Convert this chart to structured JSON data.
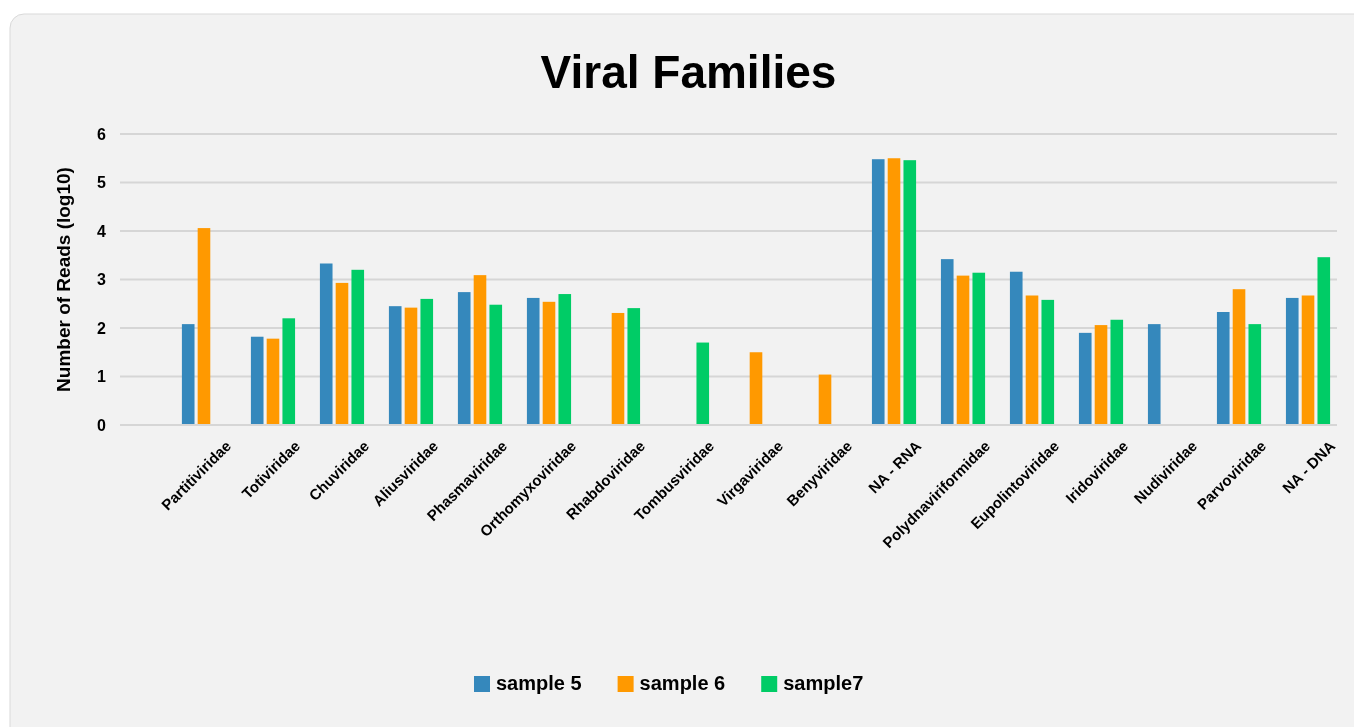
{
  "chart_data": {
    "type": "bar",
    "title": "Viral Families",
    "ylabel": "Number of Reads (log10)",
    "categories": [
      "Partitiviridae",
      "Totiviridae",
      "Chuviridae",
      "Aliusviridae",
      "Phasmaviridae",
      "Orthomyxoviridae",
      "Rhabdoviridae",
      "Tombusviridae",
      "Virgaviridae",
      "Benyviridae",
      "NA - RNA",
      "Polydnaviriformidae",
      "Eupolintoviridae",
      "Iridoviridae",
      "Nudiviridae",
      "Parvoviridae",
      "NA - DNA"
    ],
    "series": [
      {
        "name": "sample 5",
        "color": "#3588bc",
        "values": [
          2.08,
          1.82,
          3.33,
          2.45,
          2.74,
          2.62,
          null,
          null,
          null,
          null,
          5.48,
          3.42,
          3.16,
          1.9,
          2.08,
          2.33,
          2.62
        ]
      },
      {
        "name": "sample 6",
        "color": "#ff9900",
        "values": [
          4.06,
          1.78,
          2.93,
          2.42,
          3.09,
          2.54,
          2.31,
          null,
          1.5,
          1.04,
          5.5,
          3.08,
          2.67,
          2.06,
          null,
          2.8,
          2.67
        ]
      },
      {
        "name": "sample7",
        "color": "#00cc66",
        "values": [
          null,
          2.2,
          3.2,
          2.6,
          2.48,
          2.7,
          2.41,
          1.7,
          null,
          null,
          5.46,
          3.14,
          2.58,
          2.17,
          null,
          2.08,
          3.46
        ]
      }
    ],
    "ylim": [
      0,
      6
    ],
    "yticks": [
      0,
      1,
      2,
      3,
      4,
      5,
      6
    ],
    "grid": "y",
    "legend": "bottom"
  }
}
